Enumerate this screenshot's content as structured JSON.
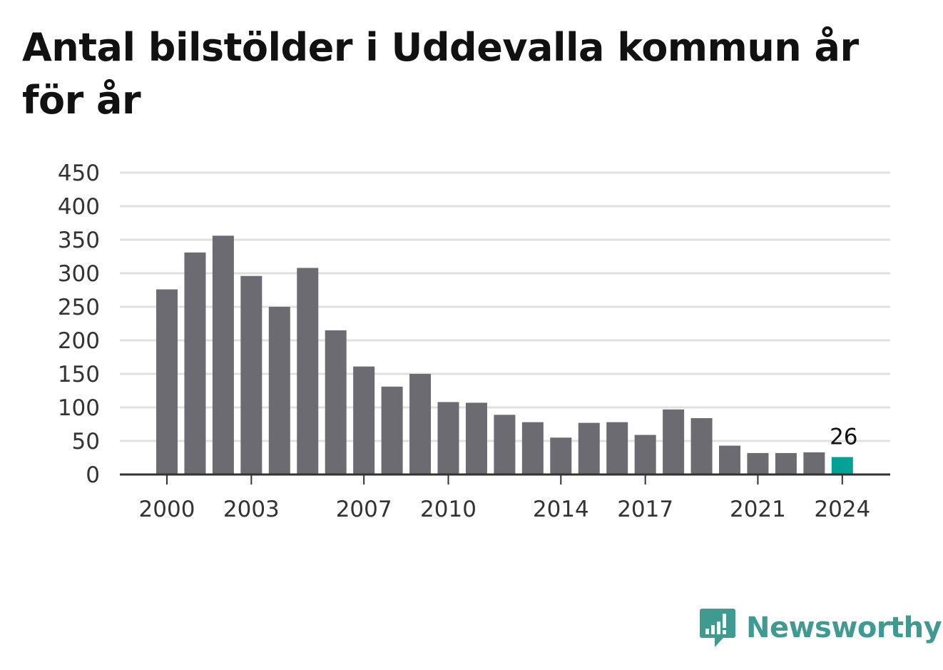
{
  "title": "Antal bilstölder i Uddevalla kommun år för år",
  "brand": {
    "name": "Newsworthy",
    "icon": "newsworthy-logo-icon",
    "color": "#3f9a92"
  },
  "chart_data": {
    "type": "bar",
    "title": "Antal bilstölder i Uddevalla kommun år för år",
    "xlabel": "",
    "ylabel": "",
    "categories": [
      "2000",
      "2001",
      "2002",
      "2003",
      "2004",
      "2005",
      "2006",
      "2007",
      "2008",
      "2009",
      "2010",
      "2011",
      "2012",
      "2013",
      "2014",
      "2015",
      "2016",
      "2017",
      "2018",
      "2019",
      "2020",
      "2021",
      "2022",
      "2023",
      "2024"
    ],
    "values": [
      276,
      331,
      356,
      296,
      250,
      308,
      215,
      161,
      131,
      150,
      108,
      107,
      89,
      78,
      55,
      77,
      78,
      59,
      97,
      84,
      43,
      32,
      32,
      33,
      26
    ],
    "ylim": [
      0,
      450
    ],
    "yticks": [
      0,
      50,
      100,
      150,
      200,
      250,
      300,
      350,
      400,
      450
    ],
    "xticks": [
      "2000",
      "2003",
      "2007",
      "2010",
      "2014",
      "2017",
      "2021",
      "2024"
    ],
    "highlight": {
      "category": "2024",
      "label": "26"
    },
    "grid": true,
    "colors": {
      "bar": "#6c6b72",
      "highlight": "#00a396",
      "grid": "#e0e0e0",
      "axis": "#333333"
    }
  }
}
